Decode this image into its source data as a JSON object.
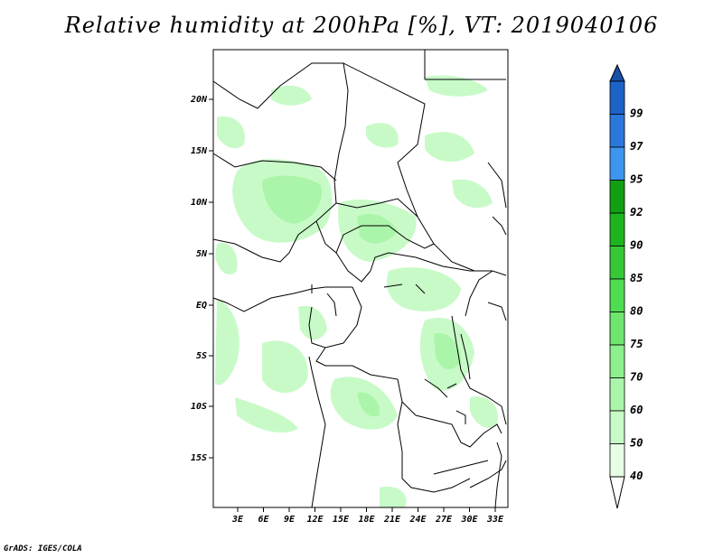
{
  "title": "Relative humidity at 200hPa [%], VT: 2019040106",
  "credit": "GrADS: IGES/COLA",
  "map": {
    "lat_labels": [
      "20N",
      "15N",
      "10N",
      "5N",
      "EQ",
      "5S",
      "10S",
      "15S"
    ],
    "lon_labels": [
      "3E",
      "6E",
      "9E",
      "12E",
      "15E",
      "18E",
      "21E",
      "24E",
      "27E",
      "30E",
      "33E"
    ]
  },
  "colorbar": {
    "levels": [
      "99",
      "97",
      "95",
      "92",
      "90",
      "85",
      "80",
      "75",
      "70",
      "60",
      "50",
      "40"
    ],
    "colors": [
      "#1c63c8",
      "#2b78dc",
      "#3c96f0",
      "#11a011",
      "#1eb41e",
      "#37c837",
      "#50dc50",
      "#6ee66e",
      "#8cf08c",
      "#aaf5aa",
      "#c8fac8",
      "#e6fde6"
    ],
    "top_color": "#1a4fa8",
    "bottom_color": "#ffffff"
  }
}
